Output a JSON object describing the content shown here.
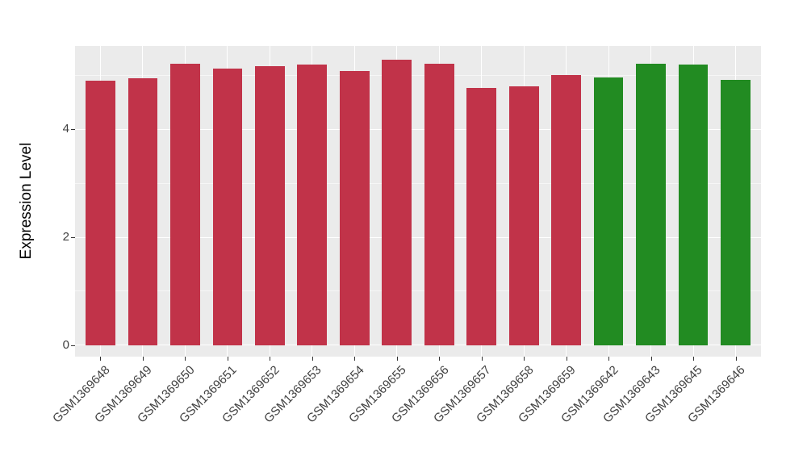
{
  "chart_data": {
    "type": "bar",
    "title": "",
    "xlabel": "",
    "ylabel": "Expression Level",
    "categories": [
      "GSM1369648",
      "GSM1369649",
      "GSM1369650",
      "GSM1369651",
      "GSM1369652",
      "GSM1369653",
      "GSM1369654",
      "GSM1369655",
      "GSM1369656",
      "GSM1369657",
      "GSM1369658",
      "GSM1369659",
      "GSM1369642",
      "GSM1369643",
      "GSM1369645",
      "GSM1369646"
    ],
    "values": [
      4.9,
      4.95,
      5.21,
      5.12,
      5.16,
      5.19,
      5.07,
      5.29,
      5.21,
      4.77,
      4.8,
      5.0,
      4.96,
      5.21,
      5.19,
      4.91
    ],
    "bar_groups": [
      "crimson",
      "crimson",
      "crimson",
      "crimson",
      "crimson",
      "crimson",
      "crimson",
      "crimson",
      "crimson",
      "crimson",
      "crimson",
      "crimson",
      "green",
      "green",
      "green",
      "green"
    ],
    "palette": {
      "crimson": "#C13349",
      "green": "#228B22"
    },
    "y_ticks": [
      0,
      2,
      4
    ],
    "y_minor_ticks": [
      1,
      3,
      5
    ],
    "ylim": [
      -0.21,
      5.54
    ],
    "bar_width_fraction": 0.7,
    "grid": true,
    "legend": "none",
    "panel_bg": "#EBEBEB",
    "grid_color": "#FFFFFF",
    "tick_mark_color": "#333333",
    "tick_label_color": "#404040"
  }
}
